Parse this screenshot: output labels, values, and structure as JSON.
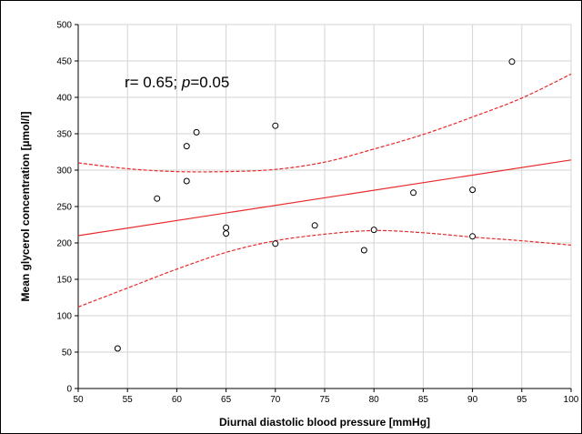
{
  "chart_data": {
    "type": "scatter",
    "xlabel": "Diurnal diastolic blood pressure [mmHg]",
    "ylabel": "Mean glycerol concentration [µmol/l]",
    "annotation": {
      "prefix": "r= 0.65; ",
      "p_symbol": "p",
      "suffix": "=0.05"
    },
    "xlim": [
      50,
      100
    ],
    "ylim": [
      0,
      500
    ],
    "x_ticks": [
      50,
      55,
      60,
      65,
      70,
      75,
      80,
      85,
      90,
      95,
      100
    ],
    "y_ticks": [
      0,
      50,
      100,
      150,
      200,
      250,
      300,
      350,
      400,
      450,
      500
    ],
    "grid": true,
    "points": [
      {
        "x": 54,
        "y": 55
      },
      {
        "x": 58,
        "y": 261
      },
      {
        "x": 61,
        "y": 333
      },
      {
        "x": 61,
        "y": 285
      },
      {
        "x": 62,
        "y": 352
      },
      {
        "x": 65,
        "y": 221
      },
      {
        "x": 65,
        "y": 213
      },
      {
        "x": 70,
        "y": 361
      },
      {
        "x": 70,
        "y": 199
      },
      {
        "x": 74,
        "y": 224
      },
      {
        "x": 79,
        "y": 190
      },
      {
        "x": 80,
        "y": 218
      },
      {
        "x": 84,
        "y": 269
      },
      {
        "x": 90,
        "y": 273
      },
      {
        "x": 90,
        "y": 209
      },
      {
        "x": 94,
        "y": 449
      }
    ],
    "regression_line": {
      "x": [
        50,
        100
      ],
      "y": [
        210,
        314
      ]
    },
    "ci_upper": {
      "x": [
        50,
        55,
        60,
        65,
        70,
        75,
        80,
        85,
        90,
        95,
        100
      ],
      "y": [
        310,
        302,
        298,
        298,
        301,
        311,
        329,
        349,
        373,
        399,
        432
      ]
    },
    "ci_lower": {
      "x": [
        50,
        55,
        60,
        65,
        70,
        75,
        80,
        85,
        90,
        95,
        100
      ],
      "y": [
        112,
        138,
        164,
        187,
        203,
        212,
        217,
        214,
        208,
        203,
        197
      ]
    },
    "colors": {
      "regression": "#e8282a",
      "confidence": "#e8282a",
      "points": "#000000",
      "grid": "#d4d4d4"
    }
  }
}
